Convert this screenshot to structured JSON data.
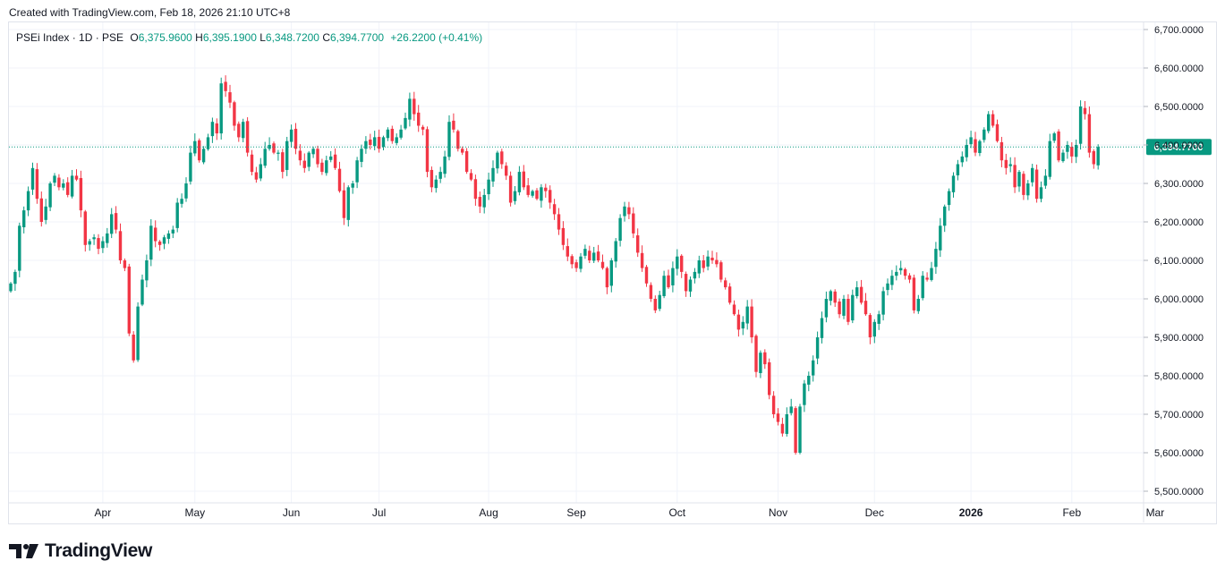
{
  "header": {
    "created_text": "Created with TradingView.com, Feb 18, 2026 21:10 UTC+8"
  },
  "legend": {
    "symbol": "PSEi Index · 1D · PSE",
    "open_key": "O",
    "open_val": "6,375.9600",
    "high_key": "H",
    "high_val": "6,395.1900",
    "low_key": "L",
    "low_val": "6,348.7200",
    "close_key": "C",
    "close_val": "6,394.7700",
    "change": "+26.2200 (+0.41%)"
  },
  "brand": {
    "name": "TradingView"
  },
  "colors": {
    "up": "#089981",
    "down": "#f23645",
    "grid": "#f0f3fa",
    "price_line": "#089981"
  },
  "chart_data": {
    "type": "candlestick",
    "y_axis": {
      "ylim": [
        5460,
        6720
      ],
      "ticks": [
        5500,
        5600,
        5700,
        5800,
        5900,
        6000,
        6100,
        6200,
        6300,
        6400,
        6500,
        6600,
        6700
      ],
      "tick_labels": [
        "5,500.0000",
        "5,600.0000",
        "5,700.0000",
        "5,800.0000",
        "5,900.0000",
        "6,000.0000",
        "6,100.0000",
        "6,200.0000",
        "6,300.0000",
        "6,400.0000",
        "6,500.0000",
        "6,600.0000",
        "6,700.0000"
      ]
    },
    "x_axis": {
      "labels": [
        "Apr",
        "May",
        "Jun",
        "Jul",
        "Aug",
        "Sep",
        "Oct",
        "Nov",
        "Dec",
        "2026",
        "Feb",
        "Mar"
      ],
      "bold": [
        false,
        false,
        false,
        false,
        false,
        false,
        false,
        false,
        false,
        true,
        false,
        false
      ],
      "label_bar_index": [
        21,
        42,
        64,
        84,
        109,
        129,
        152,
        175,
        197,
        219,
        242,
        261
      ]
    },
    "last_price": 6394.77,
    "last_price_label": "6,394.7700",
    "close": [
      6040,
      6070,
      6190,
      6230,
      6280,
      6340,
      6260,
      6200,
      6240,
      6300,
      6320,
      6290,
      6300,
      6270,
      6320,
      6310,
      6230,
      6140,
      6150,
      6160,
      6130,
      6150,
      6170,
      6220,
      6180,
      6100,
      6080,
      5910,
      5840,
      5980,
      6050,
      6100,
      6190,
      6150,
      6140,
      6160,
      6170,
      6180,
      6250,
      6260,
      6300,
      6380,
      6410,
      6360,
      6390,
      6420,
      6460,
      6430,
      6560,
      6540,
      6510,
      6450,
      6420,
      6460,
      6380,
      6330,
      6310,
      6350,
      6390,
      6400,
      6380,
      6380,
      6330,
      6410,
      6440,
      6390,
      6360,
      6340,
      6380,
      6390,
      6350,
      6330,
      6360,
      6370,
      6340,
      6280,
      6210,
      6290,
      6300,
      6360,
      6390,
      6410,
      6400,
      6420,
      6390,
      6420,
      6440,
      6410,
      6420,
      6440,
      6470,
      6520,
      6480,
      6450,
      6440,
      6330,
      6290,
      6310,
      6330,
      6370,
      6460,
      6440,
      6390,
      6380,
      6330,
      6310,
      6260,
      6240,
      6270,
      6310,
      6340,
      6380,
      6350,
      6320,
      6250,
      6280,
      6330,
      6290,
      6270,
      6280,
      6260,
      6290,
      6280,
      6250,
      6220,
      6180,
      6140,
      6110,
      6090,
      6080,
      6110,
      6130,
      6100,
      6120,
      6100,
      6080,
      6030,
      6100,
      6150,
      6210,
      6240,
      6220,
      6170,
      6120,
      6080,
      6040,
      6000,
      5970,
      6010,
      6060,
      6030,
      6080,
      6110,
      6070,
      6020,
      6050,
      6070,
      6100,
      6080,
      6110,
      6100,
      6090,
      6050,
      6030,
      5990,
      5960,
      5920,
      5940,
      5980,
      5900,
      5810,
      5860,
      5830,
      5750,
      5700,
      5680,
      5650,
      5700,
      5720,
      5600,
      5720,
      5780,
      5800,
      5840,
      5900,
      5950,
      6000,
      6020,
      5990,
      5960,
      6000,
      5940,
      6010,
      6030,
      5990,
      5960,
      5900,
      5940,
      5960,
      6020,
      6040,
      6060,
      6070,
      6080,
      6060,
      6050,
      5970,
      6000,
      6060,
      6050,
      6080,
      6130,
      6190,
      6240,
      6280,
      6320,
      6350,
      6370,
      6400,
      6420,
      6380,
      6410,
      6440,
      6480,
      6450,
      6410,
      6360,
      6340,
      6350,
      6290,
      6330,
      6270,
      6300,
      6340,
      6260,
      6290,
      6320,
      6410,
      6430,
      6360,
      6380,
      6400,
      6370,
      6400,
      6500,
      6480,
      6380,
      6350,
      6394.77
    ]
  }
}
